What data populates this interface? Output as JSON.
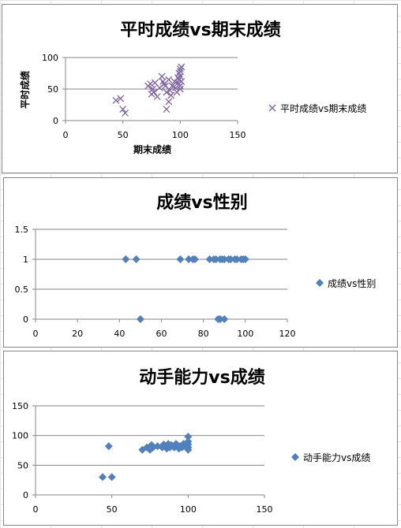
{
  "chart_data": [
    {
      "type": "scatter",
      "title": "平时成绩vs期末成绩",
      "xlabel": "期末成绩",
      "ylabel": "平时成绩",
      "xlim": [
        0,
        150
      ],
      "ylim": [
        0,
        100
      ],
      "xticks": [
        "0",
        "50",
        "100",
        "150"
      ],
      "yticks": [
        "0",
        "50",
        "100"
      ],
      "grid": "horizontal",
      "legend_position": "right",
      "marker": "x",
      "color": "#8064A2",
      "series": [
        {
          "name": "平时成绩vs期末成绩",
          "x": [
            44,
            48,
            50,
            52,
            72,
            74,
            75,
            76,
            77,
            78,
            80,
            82,
            84,
            85,
            86,
            87,
            88,
            88,
            90,
            90,
            91,
            92,
            93,
            95,
            96,
            97,
            98,
            98,
            99,
            99,
            100,
            100,
            100,
            100,
            100,
            101,
            101
          ],
          "y": [
            32,
            35,
            18,
            12,
            55,
            58,
            42,
            50,
            45,
            60,
            38,
            52,
            70,
            62,
            58,
            55,
            45,
            18,
            30,
            65,
            48,
            40,
            55,
            62,
            52,
            45,
            68,
            60,
            75,
            65,
            82,
            78,
            70,
            55,
            50,
            85,
            62
          ]
        }
      ]
    },
    {
      "type": "scatter",
      "title": "成绩vs性别",
      "xlim": [
        0,
        120
      ],
      "ylim": [
        0,
        1.5
      ],
      "xticks": [
        "0",
        "20",
        "40",
        "60",
        "80",
        "100",
        "120"
      ],
      "yticks": [
        "0",
        "0.5",
        "1",
        "1.5"
      ],
      "grid": "horizontal",
      "legend_position": "right",
      "marker": "diamond",
      "color": "#4F81BD",
      "series": [
        {
          "name": "成绩vs性别",
          "x": [
            43,
            48,
            69,
            73,
            75,
            76,
            83,
            85,
            86,
            88,
            89,
            90,
            92,
            93,
            95,
            96,
            98,
            99,
            100,
            50,
            87,
            88,
            90
          ],
          "y": [
            1,
            1,
            1,
            1,
            1,
            1,
            1,
            1,
            1,
            1,
            1,
            1,
            1,
            1,
            1,
            1,
            1,
            1,
            1,
            0,
            0,
            0,
            0
          ]
        }
      ]
    },
    {
      "type": "scatter",
      "title": "动手能力vs成绩",
      "xlim": [
        0,
        150
      ],
      "ylim": [
        0,
        150
      ],
      "xticks": [
        "0",
        "50",
        "100",
        "150"
      ],
      "yticks": [
        "0",
        "50",
        "100",
        "150"
      ],
      "grid": "horizontal",
      "legend_position": "right",
      "marker": "diamond",
      "color": "#4F81BD",
      "series": [
        {
          "name": "动手能力vs成绩",
          "x": [
            44,
            48,
            50,
            70,
            73,
            75,
            76,
            77,
            80,
            83,
            84,
            85,
            86,
            87,
            88,
            89,
            90,
            91,
            92,
            93,
            94,
            95,
            96,
            97,
            98,
            99,
            100,
            100,
            100,
            100,
            100
          ],
          "y": [
            30,
            82,
            30,
            76,
            80,
            76,
            84,
            80,
            82,
            80,
            85,
            82,
            78,
            86,
            80,
            84,
            82,
            80,
            86,
            84,
            78,
            82,
            80,
            86,
            82,
            80,
            98,
            90,
            85,
            80,
            76
          ]
        }
      ]
    }
  ]
}
